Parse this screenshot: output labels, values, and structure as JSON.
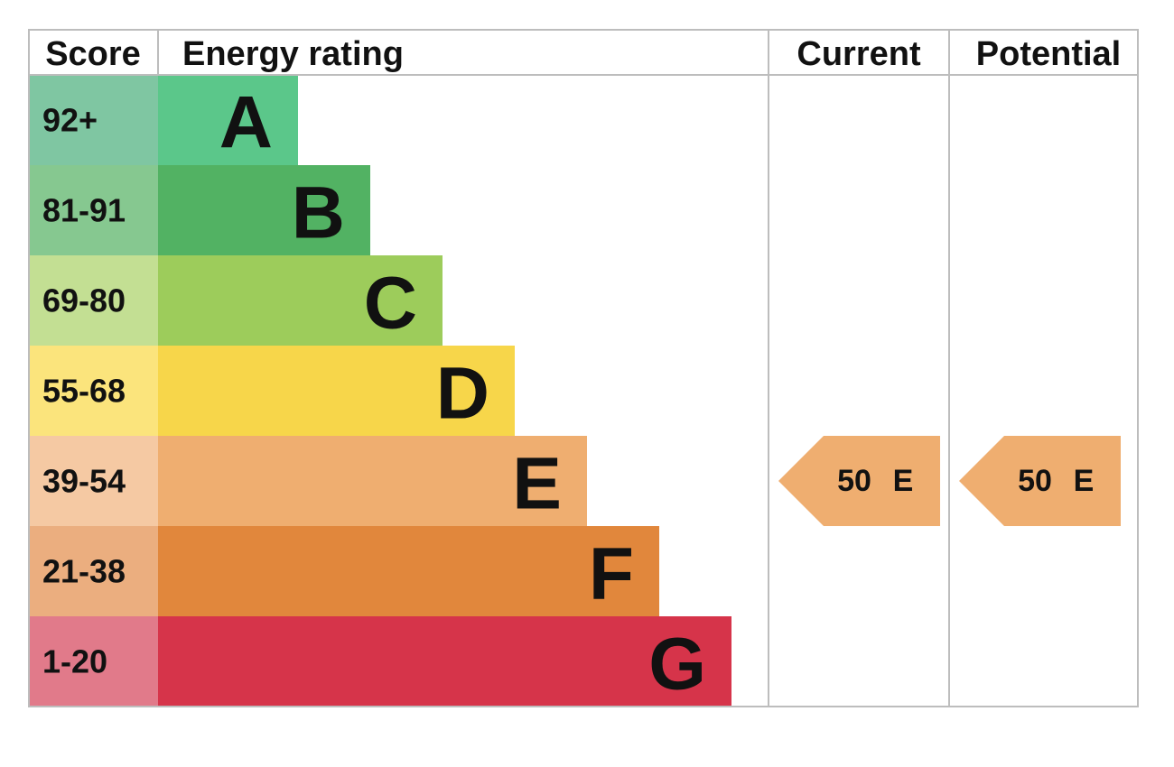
{
  "header": {
    "score": "Score",
    "energy_rating": "Energy rating",
    "current": "Current",
    "potential": "Potential"
  },
  "bands": [
    {
      "score": "92+",
      "letter": "A",
      "color": "#5bc78a",
      "score_color": "#7fc6a2"
    },
    {
      "score": "81-91",
      "letter": "B",
      "color": "#52b263",
      "score_color": "#86c890"
    },
    {
      "score": "69-80",
      "letter": "C",
      "color": "#9dcc5b",
      "score_color": "#c3df93"
    },
    {
      "score": "55-68",
      "letter": "D",
      "color": "#f7d64a",
      "score_color": "#fbe47c"
    },
    {
      "score": "39-54",
      "letter": "E",
      "color": "#efae70",
      "score_color": "#f5c9a3"
    },
    {
      "score": "21-38",
      "letter": "F",
      "color": "#e1873c",
      "score_color": "#ebae7f"
    },
    {
      "score": "1-20",
      "letter": "G",
      "color": "#d6344a",
      "score_color": "#e17a8a"
    }
  ],
  "current": {
    "value": 50,
    "rating": "E"
  },
  "potential": {
    "value": 50,
    "rating": "E"
  }
}
